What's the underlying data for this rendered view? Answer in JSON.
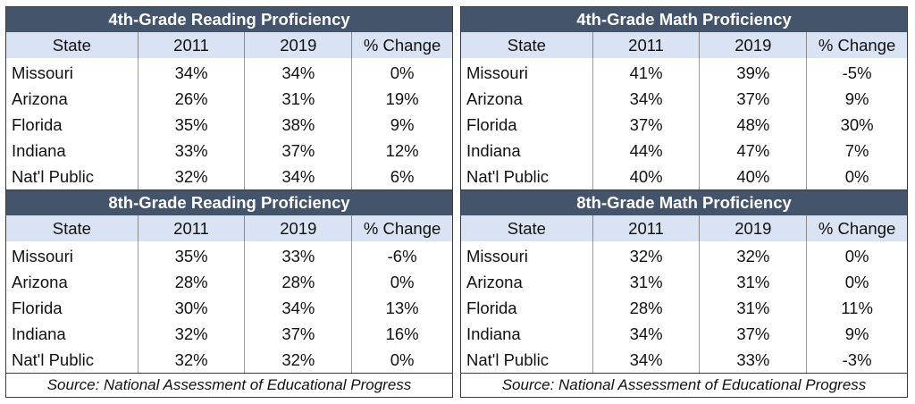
{
  "chart_data": [
    {
      "type": "table",
      "title": "4th-Grade Reading Proficiency",
      "columns": [
        "State",
        "2011",
        "2019",
        "% Change"
      ],
      "rows": [
        [
          "Missouri",
          "34%",
          "34%",
          "0%"
        ],
        [
          "Arizona",
          "26%",
          "31%",
          "19%"
        ],
        [
          "Florida",
          "35%",
          "38%",
          "9%"
        ],
        [
          "Indiana",
          "33%",
          "37%",
          "12%"
        ],
        [
          "Nat'l Public",
          "32%",
          "34%",
          "6%"
        ]
      ]
    },
    {
      "type": "table",
      "title": "8th-Grade Reading Proficiency",
      "columns": [
        "State",
        "2011",
        "2019",
        "% Change"
      ],
      "rows": [
        [
          "Missouri",
          "35%",
          "33%",
          "-6%"
        ],
        [
          "Arizona",
          "28%",
          "28%",
          "0%"
        ],
        [
          "Florida",
          "30%",
          "34%",
          "13%"
        ],
        [
          "Indiana",
          "32%",
          "37%",
          "16%"
        ],
        [
          "Nat'l Public",
          "32%",
          "32%",
          "0%"
        ]
      ]
    },
    {
      "type": "table",
      "title": "4th-Grade Math Proficiency",
      "columns": [
        "State",
        "2011",
        "2019",
        "% Change"
      ],
      "rows": [
        [
          "Missouri",
          "41%",
          "39%",
          "-5%"
        ],
        [
          "Arizona",
          "34%",
          "37%",
          "9%"
        ],
        [
          "Florida",
          "37%",
          "48%",
          "30%"
        ],
        [
          "Indiana",
          "44%",
          "47%",
          "7%"
        ],
        [
          "Nat'l Public",
          "40%",
          "40%",
          "0%"
        ]
      ]
    },
    {
      "type": "table",
      "title": "8th-Grade Math Proficiency",
      "columns": [
        "State",
        "2011",
        "2019",
        "% Change"
      ],
      "rows": [
        [
          "Missouri",
          "32%",
          "32%",
          "0%"
        ],
        [
          "Arizona",
          "31%",
          "31%",
          "0%"
        ],
        [
          "Florida",
          "28%",
          "31%",
          "11%"
        ],
        [
          "Indiana",
          "34%",
          "37%",
          "9%"
        ],
        [
          "Nat'l Public",
          "34%",
          "33%",
          "-3%"
        ]
      ]
    }
  ],
  "left_source": "Source: National Assessment of Educational Progress",
  "right_source": "Source: National Assessment of Educational Progress",
  "colors": {
    "title_band": "#44546a",
    "header_band": "#dae3f3",
    "title_text": "#ffffff"
  }
}
